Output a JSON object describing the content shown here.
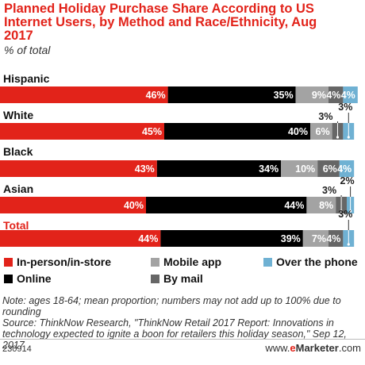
{
  "title": "Planned Holiday Purchase Share According to US Internet Users, by Method and Race/Ethnicity, Aug 2017",
  "subtitle": "% of total",
  "chart_data": {
    "type": "bar",
    "orientation": "horizontal",
    "stacked": true,
    "categories": [
      "Hispanic",
      "White",
      "Black",
      "Asian",
      "Total"
    ],
    "series": [
      {
        "name": "In-person/in-store",
        "color": "#e2231a",
        "label_color": "#ffffff",
        "values": [
          46,
          45,
          43,
          40,
          44
        ]
      },
      {
        "name": "Online",
        "color": "#000000",
        "label_color": "#ffffff",
        "values": [
          35,
          40,
          34,
          44,
          39
        ]
      },
      {
        "name": "Mobile app",
        "color": "#a3a3a3",
        "label_color": "#ffffff",
        "values": [
          9,
          6,
          10,
          8,
          7
        ]
      },
      {
        "name": "By mail",
        "color": "#666666",
        "label_color": "#ffffff",
        "values": [
          4,
          3,
          6,
          3,
          4
        ]
      },
      {
        "name": "Over the phone",
        "color": "#6fb1d3",
        "label_color": "#ffffff",
        "values": [
          4,
          3,
          4,
          2,
          3
        ]
      }
    ],
    "value_labels": [
      [
        "46%",
        "35%",
        "9%",
        "4%",
        "4%"
      ],
      [
        "45%",
        "40%",
        "6%",
        "3%",
        "3%"
      ],
      [
        "43%",
        "34%",
        "10%",
        "6%",
        "4%"
      ],
      [
        "40%",
        "44%",
        "8%",
        "3%",
        "2%"
      ],
      [
        "44%",
        "39%",
        "7%",
        "4%",
        "3%"
      ]
    ],
    "xlim": [
      0,
      100
    ],
    "grid": false,
    "legend_position": "bottom"
  },
  "legend": [
    "In-person/in-store",
    "Mobile app",
    "Over the phone",
    "Online",
    "By mail"
  ],
  "notes": "Note: ages 18-64; mean proportion; numbers may not add up to 100% due to rounding",
  "source": "Source: ThinkNow Research, \"ThinkNow Retail 2017 Report: Innovations in technology expected to ignite a boon for retailers this holiday season,\" Sep 12, 2017",
  "footer": {
    "code": "230914",
    "brand_prefix": "www.",
    "brand_e": "e",
    "brand_name": "Marketer",
    "brand_suffix": ".com"
  }
}
